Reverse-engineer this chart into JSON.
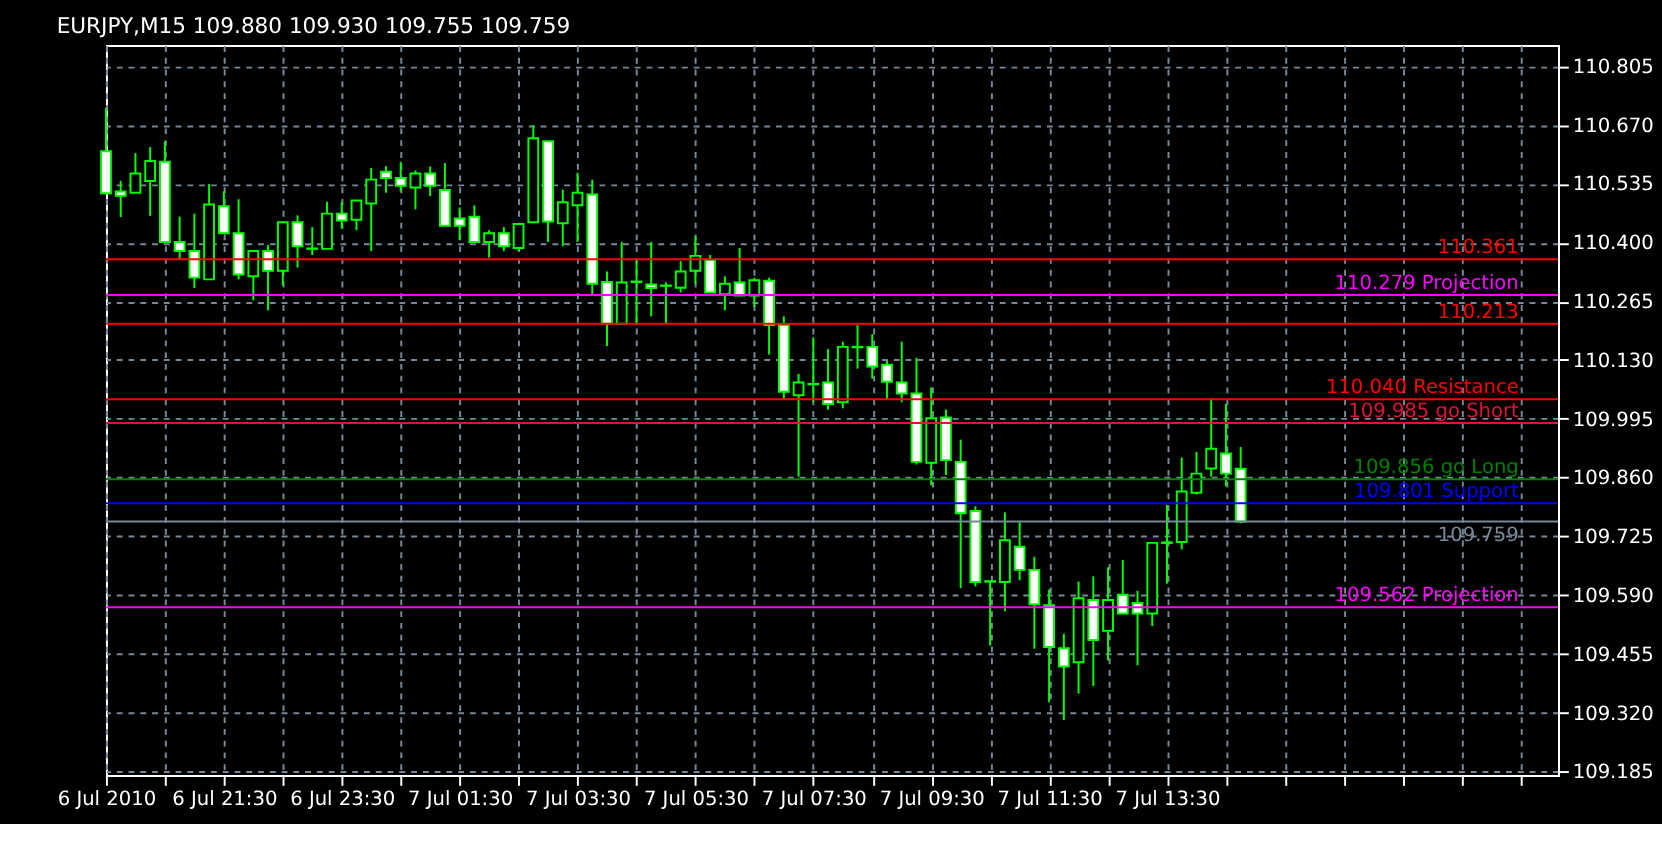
{
  "chart_data": {
    "type": "candlestick",
    "title": "EURJPY,M15  109.880 109.930 109.755 109.759",
    "color": "#00ff00",
    "x": [
      "2010-07-06T19:30",
      "2010-07-06T19:45",
      "2010-07-06T20:00",
      "2010-07-06T20:15",
      "2010-07-06T20:30",
      "2010-07-06T20:45",
      "2010-07-06T21:00",
      "2010-07-06T21:15",
      "2010-07-06T21:30",
      "2010-07-06T21:45",
      "2010-07-06T22:00",
      "2010-07-06T22:15",
      "2010-07-06T22:30",
      "2010-07-06T22:45",
      "2010-07-06T23:00",
      "2010-07-06T23:15",
      "2010-07-06T23:30",
      "2010-07-06T23:45",
      "2010-07-07T00:00",
      "2010-07-07T00:15",
      "2010-07-07T00:30",
      "2010-07-07T00:45",
      "2010-07-07T01:00",
      "2010-07-07T01:15",
      "2010-07-07T01:30",
      "2010-07-07T01:45",
      "2010-07-07T02:00",
      "2010-07-07T02:15",
      "2010-07-07T02:30",
      "2010-07-07T02:45",
      "2010-07-07T03:00",
      "2010-07-07T03:15",
      "2010-07-07T03:30",
      "2010-07-07T03:45",
      "2010-07-07T04:00",
      "2010-07-07T04:15",
      "2010-07-07T04:30",
      "2010-07-07T04:45",
      "2010-07-07T05:00",
      "2010-07-07T05:15",
      "2010-07-07T05:30",
      "2010-07-07T05:45",
      "2010-07-07T06:00",
      "2010-07-07T06:15",
      "2010-07-07T06:30",
      "2010-07-07T06:45",
      "2010-07-07T07:00",
      "2010-07-07T07:15",
      "2010-07-07T07:30",
      "2010-07-07T07:45",
      "2010-07-07T08:00",
      "2010-07-07T08:15",
      "2010-07-07T08:30",
      "2010-07-07T08:45",
      "2010-07-07T09:00",
      "2010-07-07T09:15",
      "2010-07-07T09:30",
      "2010-07-07T09:45",
      "2010-07-07T10:00",
      "2010-07-07T10:15",
      "2010-07-07T10:30",
      "2010-07-07T10:45",
      "2010-07-07T11:00",
      "2010-07-07T11:15",
      "2010-07-07T11:30",
      "2010-07-07T11:45",
      "2010-07-07T12:00",
      "2010-07-07T12:15",
      "2010-07-07T12:30",
      "2010-07-07T12:45",
      "2010-07-07T13:00",
      "2010-07-07T13:15",
      "2010-07-07T13:30",
      "2010-07-07T13:45",
      "2010-07-07T14:00",
      "2010-07-07T14:15",
      "2010-07-07T14:30",
      "2010-07-07T14:45"
    ],
    "ohlc": [
      [
        110.609,
        110.708,
        110.51,
        110.513
      ],
      [
        110.517,
        110.541,
        110.458,
        110.507
      ],
      [
        110.514,
        110.605,
        110.514,
        110.558
      ],
      [
        110.541,
        110.619,
        110.461,
        110.587
      ],
      [
        110.585,
        110.632,
        110.401,
        110.401
      ],
      [
        110.401,
        110.459,
        110.362,
        110.38
      ],
      [
        110.38,
        110.466,
        110.295,
        110.319
      ],
      [
        110.315,
        110.534,
        110.315,
        110.487
      ],
      [
        110.483,
        110.517,
        110.421,
        110.421
      ],
      [
        110.421,
        110.499,
        110.315,
        110.326
      ],
      [
        110.322,
        110.38,
        110.267,
        110.38
      ],
      [
        110.38,
        110.394,
        110.244,
        110.335
      ],
      [
        110.335,
        110.446,
        110.301,
        110.446
      ],
      [
        110.446,
        110.462,
        110.342,
        110.391
      ],
      [
        110.386,
        110.435,
        110.371,
        110.385
      ],
      [
        110.385,
        110.493,
        110.385,
        110.466
      ],
      [
        110.466,
        110.493,
        110.431,
        110.45
      ],
      [
        110.452,
        110.496,
        110.428,
        110.496
      ],
      [
        110.489,
        110.571,
        110.38,
        110.544
      ],
      [
        110.562,
        110.575,
        110.514,
        110.548
      ],
      [
        110.548,
        110.585,
        110.517,
        110.53
      ],
      [
        110.526,
        110.565,
        110.476,
        110.558
      ],
      [
        110.558,
        110.574,
        110.506,
        110.53
      ],
      [
        110.52,
        110.582,
        110.438,
        110.438
      ],
      [
        110.455,
        110.48,
        110.405,
        110.438
      ],
      [
        110.459,
        110.485,
        110.401,
        110.401
      ],
      [
        110.401,
        110.428,
        110.365,
        110.421
      ],
      [
        110.421,
        110.435,
        110.38,
        110.391
      ],
      [
        110.387,
        110.442,
        110.38,
        110.442
      ],
      [
        110.446,
        110.669,
        110.446,
        110.639
      ],
      [
        110.632,
        110.632,
        110.401,
        110.448
      ],
      [
        110.444,
        110.521,
        110.391,
        110.492
      ],
      [
        110.485,
        110.56,
        110.401,
        110.514
      ],
      [
        110.51,
        110.544,
        110.278,
        110.305
      ],
      [
        110.309,
        110.333,
        110.162,
        110.213
      ],
      [
        110.213,
        110.401,
        110.213,
        110.308
      ],
      [
        110.309,
        110.36,
        110.21,
        110.31
      ],
      [
        110.303,
        110.401,
        110.23,
        110.295
      ],
      [
        110.301,
        110.308,
        110.213,
        110.3
      ],
      [
        110.296,
        110.357,
        110.285,
        110.333
      ],
      [
        110.335,
        110.414,
        110.305,
        110.369
      ],
      [
        110.36,
        110.371,
        110.285,
        110.285
      ],
      [
        110.281,
        110.322,
        110.244,
        110.305
      ],
      [
        110.308,
        110.387,
        110.278,
        110.278
      ],
      [
        110.278,
        110.319,
        110.251,
        110.313
      ],
      [
        110.312,
        110.319,
        110.142,
        110.21
      ],
      [
        110.21,
        110.23,
        110.039,
        110.057
      ],
      [
        110.049,
        110.098,
        109.862,
        110.078
      ],
      [
        110.075,
        110.182,
        110.033,
        110.074
      ],
      [
        110.078,
        110.155,
        110.016,
        110.029
      ],
      [
        110.033,
        110.172,
        110.019,
        110.16
      ],
      [
        110.16,
        110.21,
        110.11,
        110.159
      ],
      [
        110.16,
        110.189,
        110.087,
        110.115
      ],
      [
        110.119,
        110.128,
        110.039,
        110.08
      ],
      [
        110.078,
        110.172,
        110.033,
        110.053
      ],
      [
        110.053,
        110.135,
        109.89,
        109.896
      ],
      [
        109.894,
        110.067,
        109.842,
        109.996
      ],
      [
        109.998,
        110.016,
        109.866,
        109.9
      ],
      [
        109.896,
        109.947,
        109.606,
        109.778
      ],
      [
        109.783,
        109.794,
        109.61,
        109.62
      ],
      [
        109.622,
        109.623,
        109.474,
        109.621
      ],
      [
        109.62,
        109.78,
        109.553,
        109.716
      ],
      [
        109.701,
        109.76,
        109.624,
        109.648
      ],
      [
        109.648,
        109.678,
        109.467,
        109.569
      ],
      [
        109.567,
        109.603,
        109.344,
        109.471
      ],
      [
        109.468,
        109.501,
        109.303,
        109.426
      ],
      [
        109.436,
        109.621,
        109.364,
        109.583
      ],
      [
        109.579,
        109.633,
        109.381,
        109.487
      ],
      [
        109.508,
        109.654,
        109.44,
        109.579
      ],
      [
        109.591,
        109.671,
        109.548,
        109.548
      ],
      [
        109.572,
        109.6,
        109.429,
        109.548
      ],
      [
        109.548,
        109.71,
        109.519,
        109.71
      ],
      [
        109.71,
        109.797,
        109.617,
        109.711
      ],
      [
        109.712,
        109.906,
        109.695,
        109.828
      ],
      [
        109.825,
        109.919,
        109.821,
        109.869
      ],
      [
        109.881,
        110.042,
        109.862,
        109.926
      ],
      [
        109.915,
        110.029,
        109.84,
        109.869
      ],
      [
        109.88,
        109.93,
        109.755,
        109.759
      ]
    ],
    "xlim": [
      "2010-07-06T19:30",
      "2010-07-07T20:08"
    ],
    "xticks": [
      {
        "value": "2010-07-06T19:30",
        "label": "6 Jul 2010"
      },
      {
        "value": "2010-07-06T20:30",
        "label": null
      },
      {
        "value": "2010-07-06T21:30",
        "label": "6 Jul 21:30"
      },
      {
        "value": "2010-07-06T22:30",
        "label": null
      },
      {
        "value": "2010-07-06T23:30",
        "label": "6 Jul 23:30"
      },
      {
        "value": "2010-07-07T00:30",
        "label": null
      },
      {
        "value": "2010-07-07T01:30",
        "label": "7 Jul 01:30"
      },
      {
        "value": "2010-07-07T02:30",
        "label": null
      },
      {
        "value": "2010-07-07T03:30",
        "label": "7 Jul 03:30"
      },
      {
        "value": "2010-07-07T04:30",
        "label": null
      },
      {
        "value": "2010-07-07T05:30",
        "label": "7 Jul 05:30"
      },
      {
        "value": "2010-07-07T06:30",
        "label": null
      },
      {
        "value": "2010-07-07T07:30",
        "label": "7 Jul 07:30"
      },
      {
        "value": "2010-07-07T08:30",
        "label": null
      },
      {
        "value": "2010-07-07T09:30",
        "label": "7 Jul 09:30"
      },
      {
        "value": "2010-07-07T10:30",
        "label": null
      },
      {
        "value": "2010-07-07T11:30",
        "label": "7 Jul 11:30"
      },
      {
        "value": "2010-07-07T12:30",
        "label": null
      },
      {
        "value": "2010-07-07T13:30",
        "label": "7 Jul 13:30"
      },
      {
        "value": "2010-07-07T14:30",
        "label": null
      },
      {
        "value": "2010-07-07T15:30",
        "label": null
      },
      {
        "value": "2010-07-07T16:30",
        "label": null
      },
      {
        "value": "2010-07-07T17:30",
        "label": null
      },
      {
        "value": "2010-07-07T18:30",
        "label": null
      },
      {
        "value": "2010-07-07T19:30",
        "label": null
      }
    ],
    "ylim": [
      109.177,
      110.853
    ],
    "yticks": [
      {
        "value": 109.185,
        "label": "109.185"
      },
      {
        "value": 109.32,
        "label": "109.320"
      },
      {
        "value": 109.455,
        "label": "109.455"
      },
      {
        "value": 109.59,
        "label": "109.590"
      },
      {
        "value": 109.725,
        "label": "109.725"
      },
      {
        "value": 109.86,
        "label": "109.860"
      },
      {
        "value": 109.995,
        "label": "109.995"
      },
      {
        "value": 110.13,
        "label": "110.130"
      },
      {
        "value": 110.265,
        "label": "110.265"
      },
      {
        "value": 110.4,
        "label": "110.400"
      },
      {
        "value": 110.535,
        "label": "110.535"
      },
      {
        "value": 110.67,
        "label": "110.670"
      },
      {
        "value": 110.805,
        "label": "110.805"
      }
    ],
    "grid": true,
    "ref_lines": [
      {
        "axis": "y",
        "value": 110.361,
        "label": "110.361",
        "color": "#ff0000"
      },
      {
        "axis": "y",
        "value": 110.279,
        "label": "110.279 Projection",
        "color": "#ff00ff"
      },
      {
        "axis": "y",
        "value": 110.213,
        "label": "110.213",
        "color": "#ff0000"
      },
      {
        "axis": "y",
        "value": 110.04,
        "label": "110.040 Resistance",
        "color": "#ff0000"
      },
      {
        "axis": "y",
        "value": 109.985,
        "label": "109.985 go Short",
        "color": "#dc143c"
      },
      {
        "axis": "y",
        "value": 109.856,
        "label": "109.856 go Long",
        "color": "#008000"
      },
      {
        "axis": "y",
        "value": 109.801,
        "label": "109.801 Support",
        "color": "#0000ff"
      },
      {
        "axis": "y",
        "value": 109.759,
        "label": "109.759",
        "color": "#778899"
      },
      {
        "axis": "y",
        "value": 109.562,
        "label": "109.562 Projection",
        "color": "#ff00ff"
      }
    ]
  }
}
